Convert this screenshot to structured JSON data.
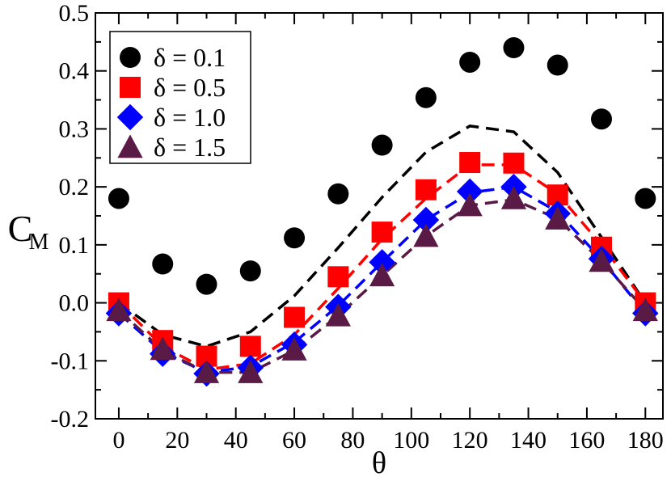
{
  "chart_data": {
    "type": "scatter",
    "title": "",
    "xlabel": "θ",
    "ylabel_main": "C",
    "ylabel_sub": "M",
    "xlim": [
      -8,
      186
    ],
    "ylim": [
      -0.2,
      0.5
    ],
    "xticks": [
      0,
      20,
      40,
      60,
      80,
      100,
      120,
      140,
      160,
      180
    ],
    "yticks": [
      -0.2,
      -0.1,
      0.0,
      0.1,
      0.2,
      0.3,
      0.4,
      0.5
    ],
    "ytick_labels": [
      "-0.2",
      "-0.1",
      "0.0",
      "0.1",
      "0.2",
      "0.3",
      "0.4",
      "0.5"
    ],
    "grid": false,
    "legend_position": "top-left",
    "x": [
      0,
      15,
      30,
      45,
      60,
      75,
      90,
      105,
      120,
      135,
      150,
      165,
      180
    ],
    "series": [
      {
        "name": "δ = 0.1",
        "marker": "circle",
        "color": "#000000",
        "values": [
          0.18,
          0.067,
          0.032,
          0.055,
          0.112,
          0.188,
          0.272,
          0.354,
          0.415,
          0.44,
          0.41,
          0.317,
          0.18
        ],
        "line_values": [
          0.0,
          -0.055,
          -0.075,
          -0.05,
          0.012,
          0.095,
          0.182,
          0.26,
          0.305,
          0.295,
          0.225,
          0.113,
          0.0
        ]
      },
      {
        "name": "δ = 0.5",
        "marker": "square",
        "color": "#ff0000",
        "values": [
          0.0,
          -0.065,
          -0.092,
          -0.075,
          -0.025,
          0.045,
          0.122,
          0.195,
          0.242,
          0.241,
          0.186,
          0.096,
          0.0
        ],
        "line_values": [
          0.0,
          -0.075,
          -0.115,
          -0.105,
          -0.055,
          0.025,
          0.11,
          0.18,
          0.238,
          0.238,
          0.188,
          0.1,
          0.0
        ]
      },
      {
        "name": "δ = 1.0",
        "marker": "diamond",
        "color": "#0000ff",
        "values": [
          -0.018,
          -0.088,
          -0.122,
          -0.112,
          -0.072,
          -0.007,
          0.07,
          0.143,
          0.192,
          0.2,
          0.154,
          0.076,
          -0.018
        ],
        "line_values": [
          -0.018,
          -0.085,
          -0.12,
          -0.11,
          -0.068,
          -0.005,
          0.07,
          0.143,
          0.19,
          0.2,
          0.157,
          0.075,
          -0.018
        ]
      },
      {
        "name": "δ = 1.5",
        "marker": "triangle",
        "color": "#5a1a46",
        "values": [
          -0.013,
          -0.08,
          -0.12,
          -0.12,
          -0.081,
          -0.022,
          0.047,
          0.115,
          0.168,
          0.18,
          0.145,
          0.072,
          -0.013
        ],
        "line_values": [
          -0.013,
          -0.082,
          -0.12,
          -0.12,
          -0.082,
          -0.022,
          0.047,
          0.115,
          0.168,
          0.178,
          0.145,
          0.072,
          -0.013
        ]
      }
    ]
  }
}
